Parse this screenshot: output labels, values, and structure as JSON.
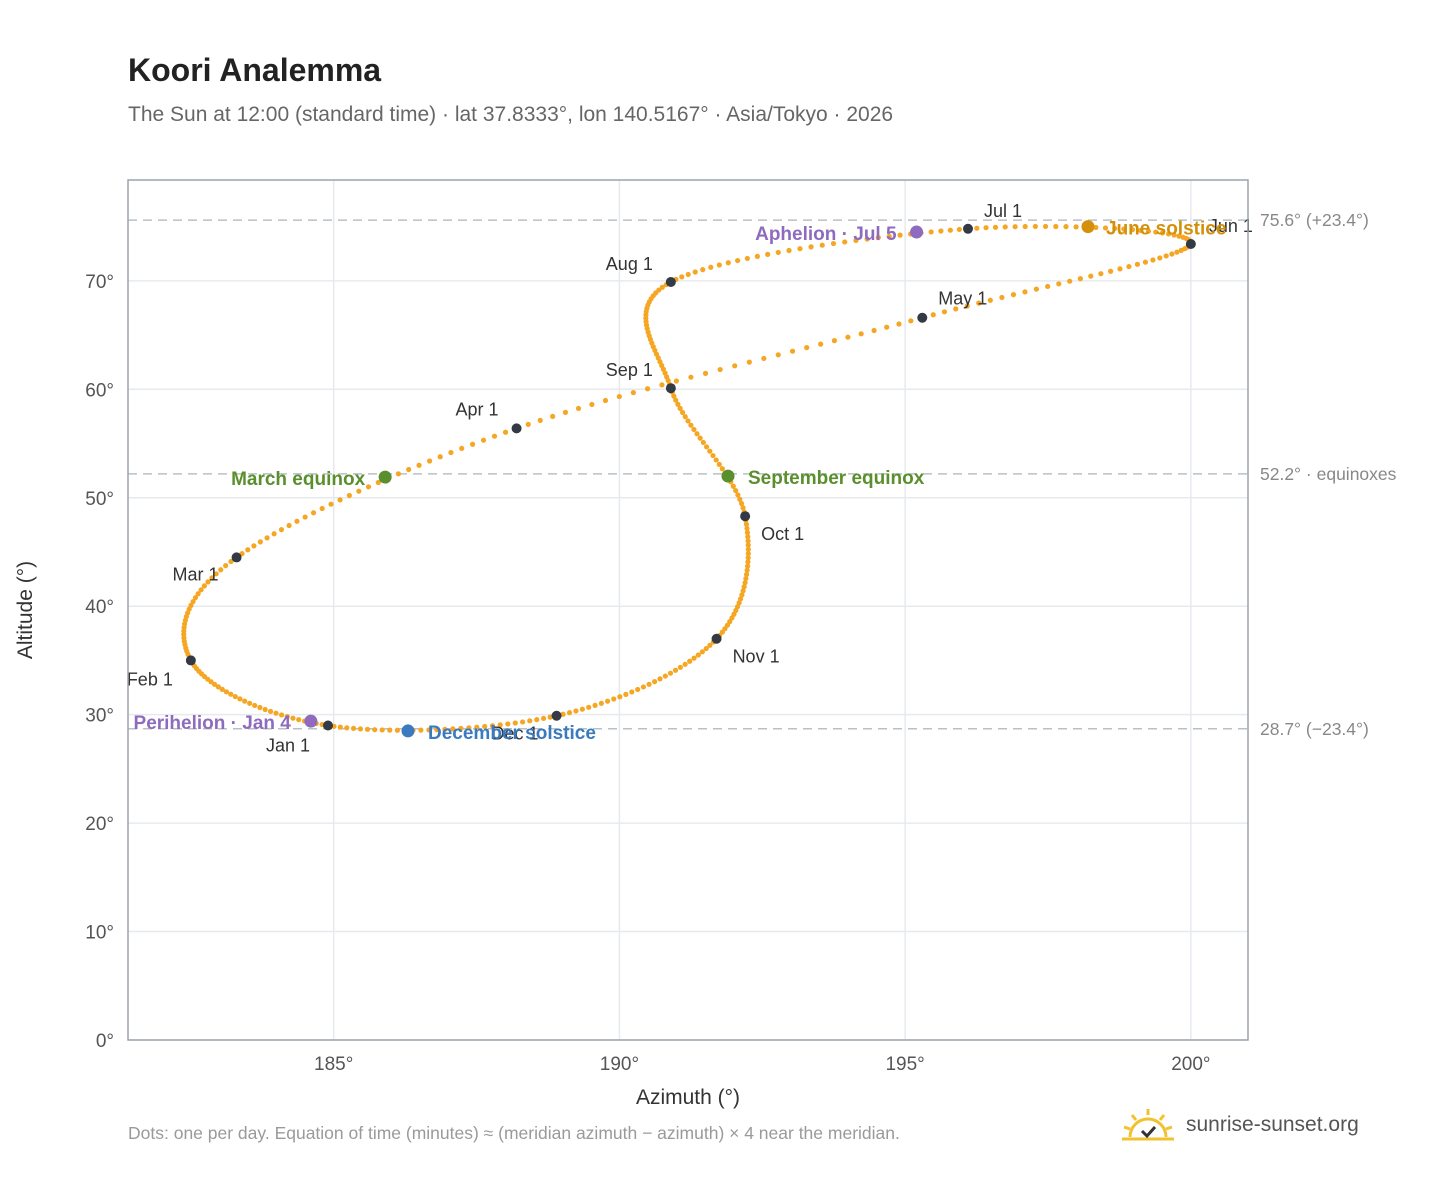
{
  "header": {
    "title": "Koori Analemma",
    "subtitle": "The Sun at 12:00 (standard time) · lat 37.8333°, lon 140.5167° · Asia/Tokyo · 2026"
  },
  "footer": {
    "note": "Dots: one per day. Equation of time (minutes) ≈ (meridian azimuth − azimuth) × 4 near the meridian.",
    "brand": "sunrise-sunset.org"
  },
  "chart_data": {
    "type": "scatter",
    "title": "Koori Analemma",
    "xlabel": "Azimuth (°)",
    "ylabel": "Altitude (°)",
    "xlim": [
      181.4,
      201.0
    ],
    "ylim": [
      0,
      79.3
    ],
    "xticks": [
      185,
      190,
      195,
      200
    ],
    "yticks": [
      0,
      10,
      20,
      30,
      40,
      50,
      60,
      70
    ],
    "tick_suffix": "°",
    "grid": true,
    "colors": {
      "dots": "#f5a623",
      "month_markers": "#333a44",
      "june_solstice": "#d4900a",
      "december_solstice": "#3a7bbf",
      "equinox": "#5a8f2e",
      "apsis": "#8e6bbf",
      "reference_lines": "#b8c0c8"
    },
    "reference_lines": [
      {
        "y": 75.6,
        "label": "75.6° (+23.4°)"
      },
      {
        "y": 52.2,
        "label": "52.2° · equinoxes"
      },
      {
        "y": 28.7,
        "label": "28.7° (−23.4°)"
      }
    ],
    "month_points": [
      {
        "label": "Jan 1",
        "az": 184.9,
        "alt": 29.0
      },
      {
        "label": "Feb 1",
        "az": 182.5,
        "alt": 35.0
      },
      {
        "label": "Mar 1",
        "az": 183.3,
        "alt": 44.5
      },
      {
        "label": "Apr 1",
        "az": 188.2,
        "alt": 56.4
      },
      {
        "label": "May 1",
        "az": 195.3,
        "alt": 66.6
      },
      {
        "label": "Jun 1",
        "az": 200.0,
        "alt": 73.4
      },
      {
        "label": "Jul 1",
        "az": 196.1,
        "alt": 74.8
      },
      {
        "label": "Aug 1",
        "az": 190.9,
        "alt": 69.9
      },
      {
        "label": "Sep 1",
        "az": 190.9,
        "alt": 60.1
      },
      {
        "label": "Oct 1",
        "az": 192.2,
        "alt": 48.3
      },
      {
        "label": "Nov 1",
        "az": 191.7,
        "alt": 37.0
      },
      {
        "label": "Dec 1",
        "az": 188.9,
        "alt": 29.9
      }
    ],
    "events": [
      {
        "label": "June solstice",
        "az": 198.2,
        "alt": 75.0,
        "color": "#d4900a"
      },
      {
        "label": "December solstice",
        "az": 186.3,
        "alt": 28.5,
        "color": "#3a7bbf"
      },
      {
        "label": "March equinox",
        "az": 185.9,
        "alt": 51.9,
        "color": "#5a8f2e"
      },
      {
        "label": "September equinox",
        "az": 191.9,
        "alt": 52.0,
        "color": "#5a8f2e"
      },
      {
        "label": "Aphelion · Jul 5",
        "az": 195.2,
        "alt": 74.5,
        "color": "#8e6bbf"
      },
      {
        "label": "Perihelion · Jan 4",
        "az": 184.6,
        "alt": 29.4,
        "color": "#8e6bbf"
      }
    ]
  }
}
